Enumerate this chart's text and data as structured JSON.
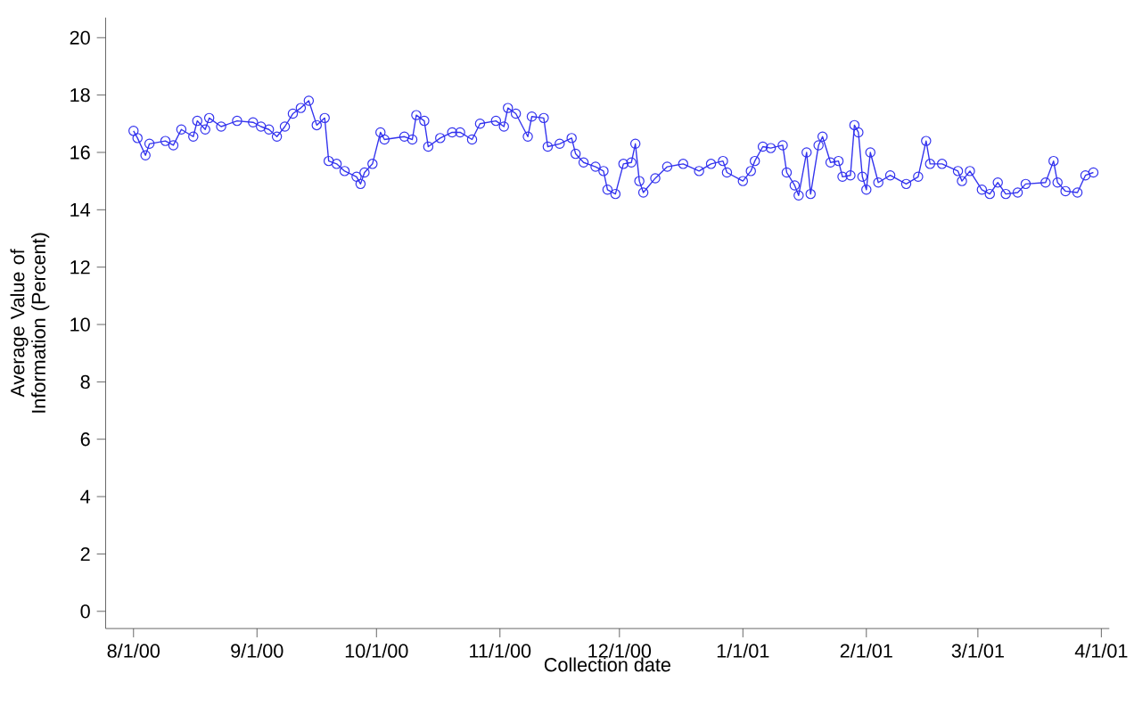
{
  "chart_data": {
    "type": "line",
    "xlabel": "Collection date",
    "ylabel": "Average Value of Information (Percent)",
    "xlim": [
      "2000-07-25",
      "2001-04-03"
    ],
    "xticks": [
      {
        "value": "2000-08-01",
        "label": "8/1/00"
      },
      {
        "value": "2000-09-01",
        "label": "9/1/00"
      },
      {
        "value": "2000-10-01",
        "label": "10/1/00"
      },
      {
        "value": "2000-11-01",
        "label": "11/1/00"
      },
      {
        "value": "2000-12-01",
        "label": "12/1/00"
      },
      {
        "value": "2001-01-01",
        "label": "1/1/01"
      },
      {
        "value": "2001-02-01",
        "label": "2/1/01"
      },
      {
        "value": "2001-03-01",
        "label": "3/1/01"
      },
      {
        "value": "2001-04-01",
        "label": "4/1/01"
      }
    ],
    "ylim": [
      -0.6,
      20.7
    ],
    "yticks": [
      0,
      2,
      4,
      6,
      8,
      10,
      12,
      14,
      16,
      18,
      20
    ],
    "grid": false,
    "marker": "circle",
    "line_style": "solid",
    "series": [
      {
        "color": "#3333ee",
        "x": [
          "2000-08-01",
          "2000-08-02",
          "2000-08-04",
          "2000-08-05",
          "2000-08-09",
          "2000-08-11",
          "2000-08-13",
          "2000-08-16",
          "2000-08-17",
          "2000-08-19",
          "2000-08-20",
          "2000-08-23",
          "2000-08-27",
          "2000-08-31",
          "2000-09-02",
          "2000-09-04",
          "2000-09-06",
          "2000-09-08",
          "2000-09-10",
          "2000-09-12",
          "2000-09-14",
          "2000-09-16",
          "2000-09-18",
          "2000-09-19",
          "2000-09-21",
          "2000-09-23",
          "2000-09-26",
          "2000-09-27",
          "2000-09-28",
          "2000-09-30",
          "2000-10-02",
          "2000-10-03",
          "2000-10-08",
          "2000-10-10",
          "2000-10-11",
          "2000-10-13",
          "2000-10-14",
          "2000-10-17",
          "2000-10-20",
          "2000-10-22",
          "2000-10-25",
          "2000-10-27",
          "2000-10-31",
          "2000-11-02",
          "2000-11-03",
          "2000-11-05",
          "2000-11-08",
          "2000-11-09",
          "2000-11-12",
          "2000-11-13",
          "2000-11-16",
          "2000-11-19",
          "2000-11-20",
          "2000-11-22",
          "2000-11-25",
          "2000-11-27",
          "2000-11-28",
          "2000-11-30",
          "2000-12-02",
          "2000-12-04",
          "2000-12-05",
          "2000-12-06",
          "2000-12-07",
          "2000-12-10",
          "2000-12-13",
          "2000-12-17",
          "2000-12-21",
          "2000-12-24",
          "2000-12-27",
          "2000-12-28",
          "2001-01-01",
          "2001-01-03",
          "2001-01-04",
          "2001-01-06",
          "2001-01-08",
          "2001-01-11",
          "2001-01-12",
          "2001-01-14",
          "2001-01-15",
          "2001-01-17",
          "2001-01-18",
          "2001-01-20",
          "2001-01-21",
          "2001-01-23",
          "2001-01-25",
          "2001-01-26",
          "2001-01-28",
          "2001-01-29",
          "2001-01-30",
          "2001-01-31",
          "2001-02-01",
          "2001-02-02",
          "2001-02-04",
          "2001-02-07",
          "2001-02-11",
          "2001-02-14",
          "2001-02-16",
          "2001-02-17",
          "2001-02-20",
          "2001-02-24",
          "2001-02-25",
          "2001-02-27",
          "2001-03-02",
          "2001-03-04",
          "2001-03-06",
          "2001-03-08",
          "2001-03-11",
          "2001-03-13",
          "2001-03-18",
          "2001-03-20",
          "2001-03-21",
          "2001-03-23",
          "2001-03-26",
          "2001-03-28",
          "2001-03-30"
        ],
        "values": [
          16.75,
          16.5,
          15.9,
          16.3,
          16.4,
          16.25,
          16.8,
          16.55,
          17.1,
          16.8,
          17.2,
          16.9,
          17.1,
          17.05,
          16.9,
          16.8,
          16.55,
          16.9,
          17.35,
          17.55,
          17.8,
          16.95,
          17.2,
          15.7,
          15.6,
          15.35,
          15.15,
          14.9,
          15.3,
          15.6,
          16.7,
          16.45,
          16.55,
          16.45,
          17.3,
          17.1,
          16.2,
          16.5,
          16.7,
          16.7,
          16.45,
          17.0,
          17.1,
          16.9,
          17.55,
          17.35,
          16.55,
          17.25,
          17.2,
          16.2,
          16.3,
          16.5,
          15.95,
          15.65,
          15.5,
          15.35,
          14.7,
          14.55,
          15.6,
          15.65,
          16.3,
          15.0,
          14.6,
          15.1,
          15.5,
          15.6,
          15.35,
          15.6,
          15.7,
          15.3,
          15.0,
          15.35,
          15.7,
          16.2,
          16.15,
          16.25,
          15.3,
          14.85,
          14.5,
          16.0,
          14.55,
          16.25,
          16.55,
          15.65,
          15.7,
          15.15,
          15.2,
          16.95,
          16.7,
          15.15,
          14.7,
          16.0,
          14.95,
          15.2,
          14.9,
          15.15,
          16.4,
          15.6,
          15.6,
          15.35,
          15.0,
          15.35,
          14.7,
          14.55,
          14.95,
          14.55,
          14.6,
          14.9,
          14.95,
          15.7,
          14.95,
          14.65,
          14.6,
          15.2,
          15.3
        ]
      }
    ]
  }
}
